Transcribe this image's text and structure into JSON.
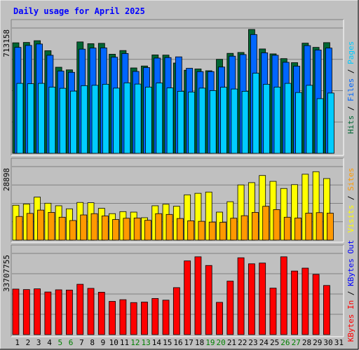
{
  "chart_data": {
    "type": "bar",
    "title": "Daily usage for April 2025",
    "colors": {
      "hits": "#006633",
      "files": "#0066ff",
      "pages": "#00ccff",
      "visits": "#ffff00",
      "sites": "#ff9900",
      "kbin": "#ff0000",
      "bg": "#c0c0c0",
      "title": "#0000ff"
    },
    "x": [
      "1",
      "2",
      "3",
      "4",
      "5",
      "6",
      "7",
      "8",
      "9",
      "10",
      "11",
      "12",
      "13",
      "14",
      "15",
      "16",
      "17",
      "18",
      "19",
      "20",
      "21",
      "22",
      "23",
      "24",
      "25",
      "26",
      "27",
      "28",
      "29",
      "30",
      "31"
    ],
    "weekend_days": [
      "5",
      "6",
      "12",
      "13",
      "19",
      "20",
      "26",
      "27"
    ],
    "weekend_color": "#008000",
    "panels": [
      {
        "id": "hits",
        "ymax_label": "713158",
        "ymax": 713158,
        "side_label": [
          {
            "text": "Hits",
            "color": "#006633"
          },
          {
            "text": " / ",
            "color": "#000000"
          },
          {
            "text": "Files",
            "color": "#0066ff"
          },
          {
            "text": " / ",
            "color": "#000000"
          },
          {
            "text": "Pages",
            "color": "#00ccff"
          }
        ],
        "series": [
          {
            "key": "hits",
            "values": [
              629000,
              631000,
              641000,
              584000,
              490000,
              475000,
              634000,
              624000,
              626000,
              564000,
              585000,
              486000,
              497000,
              560000,
              559000,
              514000,
              473000,
              480000,
              470000,
              535000,
              569000,
              574000,
              705000,
              594000,
              566000,
              539000,
              516000,
              627000,
              603000,
              630000,
              0
            ]
          },
          {
            "key": "files",
            "values": [
              603000,
              614000,
              622000,
              558000,
              468000,
              461000,
              593000,
              599000,
              600000,
              547000,
              568000,
              466000,
              488000,
              542000,
              545000,
              549000,
              484000,
              465000,
              465000,
              491000,
              553000,
              562000,
              676000,
              572000,
              558000,
              518000,
              496000,
              613000,
              588000,
              599000,
              0
            ]
          },
          {
            "key": "pages",
            "values": [
              398000,
              396000,
              398000,
              377000,
              370000,
              354000,
              385000,
              387000,
              393000,
              371000,
              401000,
              394000,
              377000,
              400000,
              372000,
              353000,
              349000,
              371000,
              357000,
              376000,
              366000,
              353000,
              456000,
              393000,
              377000,
              398000,
              346000,
              387000,
              311000,
              343000,
              0
            ]
          }
        ]
      },
      {
        "id": "visits",
        "ymax_label": "28898",
        "ymax": 28898,
        "side_label": [
          {
            "text": "Visits",
            "color": "#ffff00"
          },
          {
            "text": " / ",
            "color": "#000000"
          },
          {
            "text": "Sites",
            "color": "#ff9900"
          }
        ],
        "series": [
          {
            "key": "visits",
            "values": [
              13700,
              14200,
              16900,
              14500,
              13500,
              12300,
              14800,
              14700,
              12500,
              10400,
              11200,
              11000,
              8800,
              13500,
              14100,
              13300,
              17800,
              18400,
              18900,
              11000,
              15100,
              21700,
              22600,
              25400,
              23100,
              20300,
              21800,
              25900,
              26900,
              24200,
              0
            ]
          },
          {
            "key": "sites",
            "values": [
              9300,
              10500,
              11800,
              10900,
              9000,
              7700,
              9900,
              10400,
              9500,
              8100,
              8600,
              8700,
              7800,
              10400,
              10100,
              8500,
              7600,
              7400,
              7100,
              7000,
              8600,
              9600,
              10900,
              13300,
              12000,
              9000,
              8700,
              10600,
              10800,
              10600,
              0
            ]
          }
        ]
      },
      {
        "id": "kbin",
        "ymax_label": "33707755",
        "ymax": 33707755,
        "side_label": [
          {
            "text": "KBytes In",
            "color": "#ff0000"
          },
          {
            "text": " / ",
            "color": "#000000"
          },
          {
            "text": "KBytes Out",
            "color": "#0000ff"
          }
        ],
        "series": [
          {
            "key": "kbin",
            "values": [
              18900000,
              18700000,
              19000000,
              17700000,
              18600000,
              18500000,
              20900000,
              19200000,
              17600000,
              13800000,
              14500000,
              13300000,
              13500000,
              15000000,
              14300000,
              19500000,
              30600000,
              32300000,
              28700000,
              13400000,
              22200000,
              31900000,
              29400000,
              29700000,
              19300000,
              32300000,
              26400000,
              27600000,
              25000000,
              20400000,
              0
            ]
          }
        ]
      }
    ]
  }
}
